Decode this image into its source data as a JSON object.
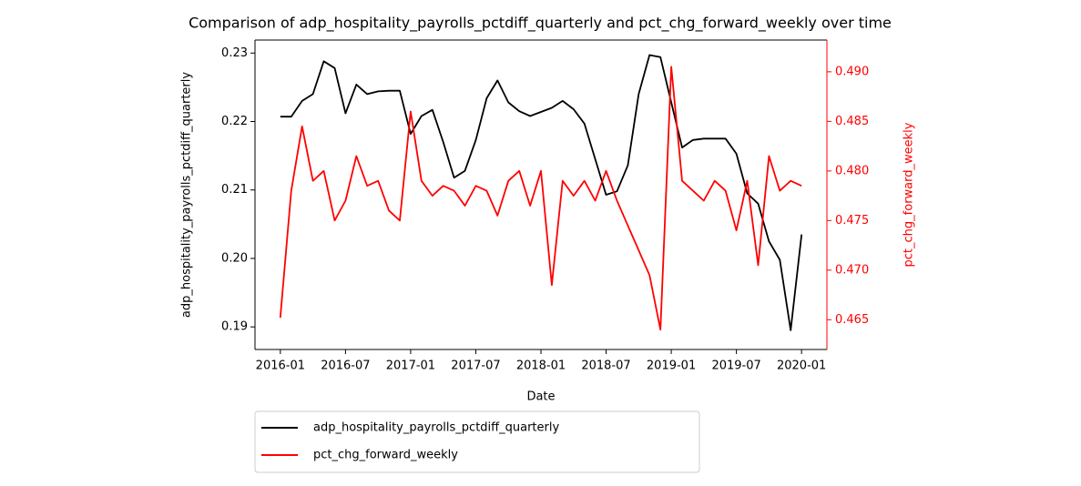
{
  "chart_data": {
    "type": "line",
    "title": "Comparison of adp_hospitality_payrolls_pctdiff_quarterly and pct_chg_forward_weekly over time",
    "xlabel": "Date",
    "ylabel": "adp_hospitality_payrolls_pctdiff_quarterly",
    "y2label": "pct_chg_forward_weekly",
    "x": [
      "2016-01",
      "2016-02",
      "2016-03",
      "2016-04",
      "2016-05",
      "2016-06",
      "2016-07",
      "2016-08",
      "2016-09",
      "2016-10",
      "2016-11",
      "2016-12",
      "2017-01",
      "2017-02",
      "2017-03",
      "2017-04",
      "2017-05",
      "2017-06",
      "2017-07",
      "2017-08",
      "2017-09",
      "2017-10",
      "2017-11",
      "2017-12",
      "2018-01",
      "2018-02",
      "2018-03",
      "2018-04",
      "2018-05",
      "2018-06",
      "2018-07",
      "2018-08",
      "2018-09",
      "2018-10",
      "2018-11",
      "2018-12",
      "2019-01",
      "2019-02",
      "2019-03",
      "2019-04",
      "2019-05",
      "2019-06",
      "2019-07",
      "2019-08",
      "2019-09",
      "2019-10",
      "2019-11",
      "2019-12",
      "2020-01"
    ],
    "series": [
      {
        "name": "adp_hospitality_payrolls_pctdiff_quarterly",
        "color": "#000000",
        "axis": "y",
        "values": [
          0.2207,
          0.2207,
          0.223,
          0.224,
          0.2288,
          0.2278,
          0.2212,
          0.2254,
          0.224,
          0.2244,
          0.2245,
          0.2245,
          0.2182,
          0.2208,
          0.2217,
          0.217,
          0.2118,
          0.2128,
          0.2173,
          0.2234,
          0.226,
          0.2228,
          0.2215,
          0.2208,
          0.2214,
          0.222,
          0.223,
          0.2218,
          0.2197,
          0.2145,
          0.2093,
          0.2098,
          0.2136,
          0.224,
          0.2297,
          0.2294,
          0.2228,
          0.2162,
          0.2173,
          0.2175,
          0.2175,
          0.2175,
          0.2153,
          0.2095,
          0.208,
          0.2025,
          0.1998,
          0.1895,
          0.2035
        ]
      },
      {
        "name": "pct_chg_forward_weekly",
        "color": "#ff0000",
        "axis": "y2",
        "values": [
          0.4652,
          0.478,
          0.4845,
          0.479,
          0.48,
          0.475,
          0.477,
          0.4815,
          0.4785,
          0.479,
          0.476,
          0.475,
          0.486,
          0.479,
          0.4775,
          0.4785,
          0.478,
          0.4765,
          0.4785,
          0.478,
          0.4755,
          0.479,
          0.48,
          0.4765,
          0.48,
          0.4685,
          0.479,
          0.4775,
          0.479,
          0.477,
          0.48,
          0.477,
          0.4745,
          0.472,
          0.4695,
          0.464,
          0.4905,
          0.479,
          0.478,
          0.477,
          0.479,
          0.478,
          0.474,
          0.479,
          0.4705,
          0.4815,
          0.478,
          0.479,
          0.4785
        ]
      }
    ],
    "xlim": [
      "2015-11",
      "2020-03"
    ],
    "xticks": [
      "2016-01",
      "2016-07",
      "2017-01",
      "2017-07",
      "2018-01",
      "2018-07",
      "2019-01",
      "2019-07",
      "2020-01"
    ],
    "ylim": [
      0.1867,
      0.2319
    ],
    "yticks": [
      0.19,
      {
        "value": 0.2,
        "label": "0.20"
      },
      0.21,
      0.22,
      0.23
    ],
    "y2lim": [
      0.462,
      0.4932
    ],
    "y2ticks": [
      0.465,
      {
        "value": 0.47,
        "label": "0.470"
      },
      0.475,
      {
        "value": 0.48,
        "label": "0.480"
      },
      0.485,
      {
        "value": 0.49,
        "label": "0.490"
      }
    ],
    "y2color": "#ff0000",
    "legend": "below"
  }
}
